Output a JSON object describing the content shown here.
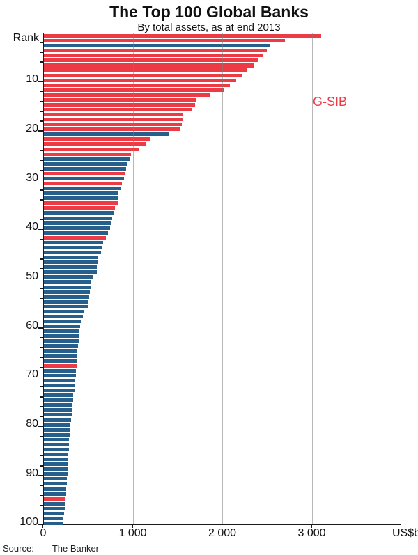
{
  "header": {
    "title": "The Top 100 Global Banks",
    "subtitle": "By total assets, as at end 2013"
  },
  "legend": {
    "gsib_label": "G-SIB"
  },
  "axes": {
    "y_axis_title": "Rank",
    "x_unit_label": "US$b",
    "x_max": 4000,
    "x_ticks": [
      {
        "value": 0,
        "label": "0"
      },
      {
        "value": 1000,
        "label": "1 000"
      },
      {
        "value": 2000,
        "label": "2 000"
      },
      {
        "value": 3000,
        "label": "3 000"
      }
    ],
    "y_tick_labels": [
      "10",
      "20",
      "30",
      "40",
      "50",
      "60",
      "70",
      "80",
      "90",
      "100"
    ],
    "y_minor_tick_step": 2
  },
  "colors": {
    "gsib": "#ED3B45",
    "non_gsib": "#265E8C",
    "gridline": "#7d7d7d",
    "frame": "#1a1a1a"
  },
  "source": {
    "label": "Source:",
    "text": "The Banker"
  },
  "chart_data": {
    "type": "bar",
    "orientation": "horizontal",
    "title": "The Top 100 Global Banks",
    "subtitle": "By total assets, as at end 2013",
    "xlabel": "US$b",
    "ylabel": "Rank",
    "xlim": [
      0,
      4000
    ],
    "grid": "vertical, at 1000/2000/3000, drawn over bars",
    "legend": [
      {
        "name": "G-SIB",
        "color": "#ED3B45"
      },
      {
        "name": "Other bank",
        "color": "#265E8C"
      }
    ],
    "ranks": "1 to 100, top to bottom",
    "values_usd_b": [
      3100,
      2690,
      2520,
      2490,
      2450,
      2400,
      2350,
      2270,
      2210,
      2150,
      2080,
      2010,
      1860,
      1700,
      1690,
      1655,
      1560,
      1550,
      1540,
      1525,
      1400,
      1180,
      1140,
      1070,
      970,
      960,
      930,
      915,
      905,
      898,
      875,
      862,
      832,
      828,
      822,
      795,
      780,
      765,
      755,
      740,
      715,
      690,
      660,
      647,
      640,
      608,
      604,
      592,
      588,
      555,
      532,
      524,
      516,
      509,
      493,
      488,
      455,
      436,
      416,
      405,
      398,
      391,
      387,
      382,
      377,
      370,
      366,
      363,
      359,
      356,
      352,
      349,
      346,
      328,
      325,
      322,
      318,
      308,
      305,
      298,
      295,
      290,
      281,
      279,
      277,
      275,
      273,
      271,
      267,
      264,
      259,
      255,
      252,
      248,
      241,
      237,
      234,
      223,
      216,
      210
    ],
    "gsib_ranks": [
      1,
      2,
      4,
      5,
      6,
      7,
      8,
      9,
      10,
      11,
      12,
      13,
      14,
      15,
      16,
      17,
      18,
      19,
      20,
      22,
      23,
      24,
      25,
      29,
      31,
      35,
      36,
      42,
      68,
      95
    ]
  }
}
